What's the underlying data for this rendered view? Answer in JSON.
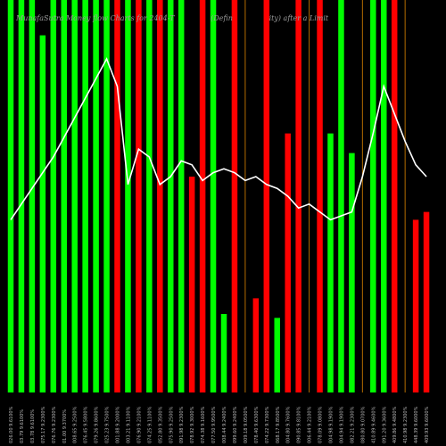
{
  "chart_data": {
    "type": "bar",
    "title": "MunafaSutra Money flow Charts for 2404-T                (Defin                ity) after a Limit",
    "xlabel": "",
    "ylabel": "",
    "ylim": [
      0,
      100
    ],
    "grid": false,
    "legend": "none",
    "colors": {
      "up": "#00ff00",
      "down": "#ff0000",
      "line": "#ffffff",
      "thin_line": "#b36b00",
      "background": "#000000"
    },
    "categories": [
      "026.00 9.6100%",
      "03.79 9.6100%",
      "03.78 9.6100%",
      "075.17 9.2300%",
      "076.76 9.2300%",
      "01.00 9.3700%",
      "008.65 9.2500%",
      "076.45 9.5800%",
      "079.26 9.8600%",
      "025.23 9.7500%",
      "001.88 9.2000%",
      "003.21 9.1100%",
      "076.90 9.2100%",
      "074.25 9.1100%",
      "052.80 9.3500%",
      "075.90 9.2500%",
      "091.98 9.2300%",
      "078.92 9.3000%",
      "074.38 9.1600%",
      "077.50 9.9500%",
      "008.44 9.2400%",
      "099.60 9.2400%",
      "009.18 9.0500%",
      "078.40 9.6300%",
      "074.22 9.7300%",
      "068.17 9.8500%",
      "004.80 9.7600%",
      "090.85 9.8100%",
      "006.44 9.2100%",
      "078.09 9.0800%",
      "004.98 9.1900%",
      "004.94 9.1900%",
      "082.21 9.2300%",
      "080.80 9.0700%",
      "410.89 9.4600%",
      "091.20 9.3600%",
      "409.86 9.4800%",
      "410.98 9.2300%",
      "448.39 9.6000%",
      "409.93 9.6000%"
    ],
    "bars": [
      {
        "v": 100,
        "c": "up"
      },
      {
        "v": 100,
        "c": "up"
      },
      {
        "v": 100,
        "c": "up"
      },
      {
        "v": 91,
        "c": "up"
      },
      {
        "v": 100,
        "c": "up"
      },
      {
        "v": 100,
        "c": "up"
      },
      {
        "v": 100,
        "c": "up"
      },
      {
        "v": 100,
        "c": "up"
      },
      {
        "v": 100,
        "c": "up"
      },
      {
        "v": 100,
        "c": "up"
      },
      {
        "v": 100,
        "c": "down"
      },
      {
        "v": 100,
        "c": "up"
      },
      {
        "v": 100,
        "c": "down"
      },
      {
        "v": 100,
        "c": "up"
      },
      {
        "v": 100,
        "c": "down"
      },
      {
        "v": 100,
        "c": "up"
      },
      {
        "v": 100,
        "c": "up"
      },
      {
        "v": 55,
        "c": "down"
      },
      {
        "v": 100,
        "c": "down"
      },
      {
        "v": 100,
        "c": "up"
      },
      {
        "v": 20,
        "c": "up"
      },
      {
        "v": 100,
        "c": "down"
      },
      {
        "v": 100,
        "c": "thin"
      },
      {
        "v": 24,
        "c": "down"
      },
      {
        "v": 100,
        "c": "down"
      },
      {
        "v": 19,
        "c": "up"
      },
      {
        "v": 66,
        "c": "down"
      },
      {
        "v": 100,
        "c": "down"
      },
      {
        "v": 100,
        "c": "thin"
      },
      {
        "v": 100,
        "c": "down"
      },
      {
        "v": 66,
        "c": "up"
      },
      {
        "v": 100,
        "c": "up"
      },
      {
        "v": 61,
        "c": "up"
      },
      {
        "v": 100,
        "c": "thin"
      },
      {
        "v": 100,
        "c": "up"
      },
      {
        "v": 100,
        "c": "up"
      },
      {
        "v": 100,
        "c": "down"
      },
      {
        "v": 100,
        "c": "thin"
      },
      {
        "v": 44,
        "c": "down"
      },
      {
        "v": 46,
        "c": "down"
      }
    ],
    "line_values": [
      44,
      48,
      52,
      56,
      60,
      65,
      70,
      75,
      80,
      85,
      78,
      53,
      62,
      60,
      53,
      55,
      59,
      58,
      54,
      56,
      57,
      56,
      54,
      55,
      53,
      52,
      50,
      47,
      48,
      46,
      44,
      45,
      46,
      55,
      66,
      78,
      71,
      64,
      58,
      55
    ]
  }
}
